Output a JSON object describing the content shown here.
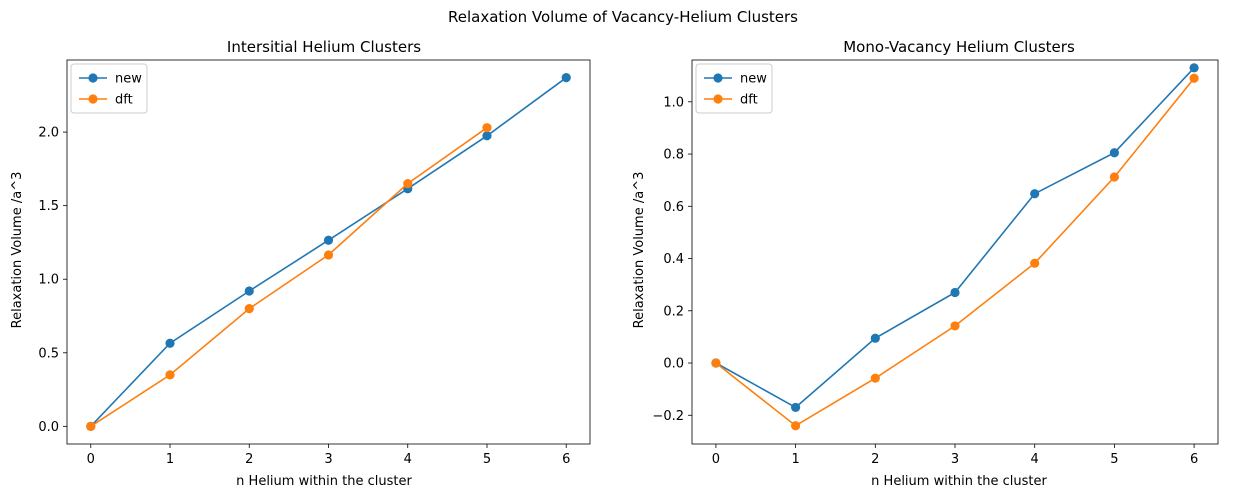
{
  "figure": {
    "suptitle": "Relaxation Volume of Vacancy-Helium Clusters"
  },
  "chart_data": [
    {
      "type": "line",
      "title": "Intersitial Helium Clusters",
      "xlabel": "n Helium within the cluster",
      "ylabel": "Relaxation Volume /a^3",
      "xlim": [
        -0.3,
        6.3
      ],
      "ylim": [
        -0.12,
        2.49
      ],
      "xticks": [
        0,
        1,
        2,
        3,
        4,
        5,
        6
      ],
      "xtick_labels": [
        "0",
        "1",
        "2",
        "3",
        "4",
        "5",
        "6"
      ],
      "yticks": [
        0.0,
        0.5,
        1.0,
        1.5,
        2.0
      ],
      "ytick_labels": [
        "0.0",
        "0.5",
        "1.0",
        "1.5",
        "2.0"
      ],
      "legend": "top-left",
      "grid": false,
      "series": [
        {
          "name": "new",
          "color": "#1f77b4",
          "marker": "circle",
          "x": [
            0,
            1,
            2,
            3,
            4,
            5,
            6
          ],
          "y": [
            0.0,
            0.565,
            0.92,
            1.265,
            1.615,
            1.975,
            2.37
          ]
        },
        {
          "name": "dft",
          "color": "#ff7f0e",
          "marker": "circle",
          "x": [
            0,
            1,
            2,
            3,
            4,
            5
          ],
          "y": [
            0.0,
            0.35,
            0.8,
            1.165,
            1.65,
            2.03
          ]
        }
      ]
    },
    {
      "type": "line",
      "title": "Mono-Vacancy Helium Clusters",
      "xlabel": "n Helium within the cluster",
      "ylabel": "Relaxation Volume /a^3",
      "xlim": [
        -0.3,
        6.3
      ],
      "ylim": [
        -0.31,
        1.16
      ],
      "xticks": [
        0,
        1,
        2,
        3,
        4,
        5,
        6
      ],
      "xtick_labels": [
        "0",
        "1",
        "2",
        "3",
        "4",
        "5",
        "6"
      ],
      "yticks": [
        -0.2,
        0.0,
        0.2,
        0.4,
        0.6,
        0.8,
        1.0
      ],
      "ytick_labels": [
        "−0.2",
        "0.0",
        "0.2",
        "0.4",
        "0.6",
        "0.8",
        "1.0"
      ],
      "legend": "top-left",
      "grid": false,
      "series": [
        {
          "name": "new",
          "color": "#1f77b4",
          "marker": "circle",
          "x": [
            0,
            1,
            2,
            3,
            4,
            5,
            6
          ],
          "y": [
            0.0,
            -0.17,
            0.095,
            0.27,
            0.648,
            0.805,
            1.13
          ]
        },
        {
          "name": "dft",
          "color": "#ff7f0e",
          "marker": "circle",
          "x": [
            0,
            1,
            2,
            3,
            4,
            5,
            6
          ],
          "y": [
            0.0,
            -0.24,
            -0.058,
            0.142,
            0.382,
            0.712,
            1.09
          ]
        }
      ]
    }
  ]
}
